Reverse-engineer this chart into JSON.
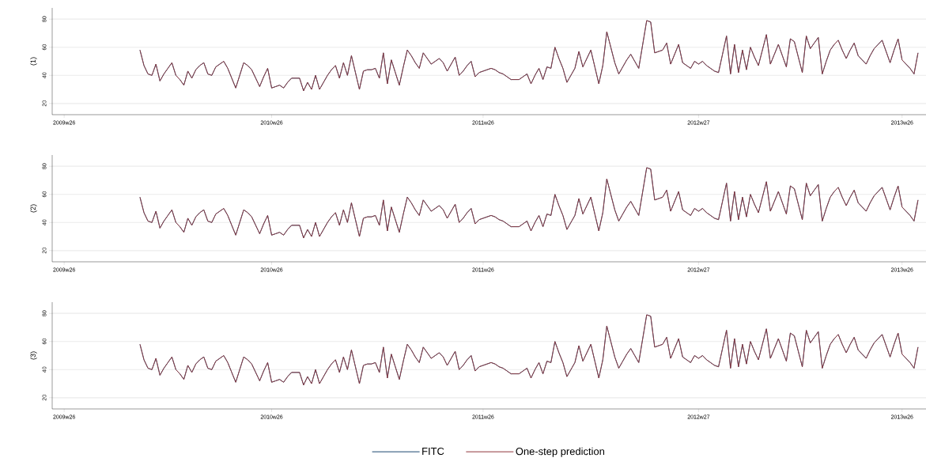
{
  "chart_data": [
    {
      "type": "line",
      "ylabel": "(1)",
      "categories": [
        "2009w26",
        null,
        null,
        null,
        null,
        null,
        null,
        null,
        null,
        null,
        null,
        null,
        null,
        null,
        null,
        null,
        null,
        null,
        null,
        null,
        null,
        null,
        null,
        null,
        null,
        null,
        null,
        null,
        null,
        null,
        null,
        null,
        null,
        null,
        null,
        null,
        null,
        null,
        null,
        null,
        null,
        null,
        null,
        null,
        null,
        null,
        null,
        null,
        null,
        null,
        null,
        null,
        "2010w26",
        null,
        null,
        null,
        null,
        null,
        null,
        null,
        null,
        null,
        null,
        null,
        null,
        null,
        null,
        null,
        null,
        null,
        null,
        null,
        null,
        null,
        null,
        null,
        null,
        null,
        null,
        null,
        null,
        null,
        null,
        null,
        null,
        null,
        null,
        null,
        null,
        null,
        null,
        null,
        null,
        null,
        null,
        null,
        null,
        null,
        null,
        null,
        null,
        null,
        null,
        null,
        null,
        "2011w26",
        null,
        null,
        null,
        null,
        null,
        null,
        null,
        null,
        null,
        null,
        null,
        null,
        null,
        null,
        null,
        null,
        null,
        null,
        null,
        null,
        null,
        null,
        null,
        null,
        null,
        null,
        null,
        null,
        null,
        null,
        null,
        null,
        null,
        null,
        null,
        null,
        null,
        null,
        null,
        null,
        null,
        null,
        null,
        null,
        null,
        null,
        null,
        null,
        null,
        null,
        null,
        null,
        null,
        "2012w27",
        null,
        null,
        null,
        null,
        null,
        null,
        null,
        null,
        null,
        null,
        null,
        null,
        null,
        null,
        null,
        null,
        null,
        null,
        null,
        null,
        null,
        null,
        null,
        null,
        null,
        null,
        null,
        null,
        null,
        null,
        null,
        null,
        null,
        null,
        null,
        null,
        null,
        null,
        null,
        null,
        null,
        null,
        null,
        null,
        null,
        null,
        null,
        null,
        null,
        null,
        "2013w26",
        null,
        null,
        null,
        null
      ],
      "ylim": [
        12,
        88
      ],
      "yticks": [
        20,
        40,
        60,
        80
      ],
      "grid": "y",
      "series": [
        {
          "color": "#1a476f",
          "values": [
            null,
            null,
            null,
            null,
            null,
            null,
            null,
            null,
            null,
            null,
            null,
            null,
            null,
            null,
            null,
            null,
            null,
            null,
            null,
            58,
            47,
            41,
            40,
            48,
            36,
            41,
            45,
            49,
            40,
            37,
            33,
            43,
            38,
            44,
            47,
            49,
            41,
            40,
            46,
            48,
            50,
            45,
            38,
            31,
            40,
            49,
            47,
            44,
            38,
            32,
            39,
            45,
            31,
            32,
            33,
            31,
            35,
            38,
            38,
            38,
            29,
            35,
            30,
            40,
            30,
            35,
            40,
            44,
            47,
            38,
            49,
            40,
            54,
            42,
            30,
            43,
            44,
            44,
            45,
            38,
            56,
            34,
            51,
            42,
            33,
            46,
            58,
            54,
            49,
            45,
            56,
            52,
            48,
            50,
            52,
            49,
            43,
            48,
            53,
            40,
            43,
            47,
            50,
            39,
            42,
            43,
            44,
            45,
            44,
            42,
            41,
            39,
            37,
            37,
            37,
            39,
            41,
            34,
            40,
            45,
            37,
            46,
            45,
            60,
            52,
            45,
            35,
            40,
            45,
            57,
            46,
            52,
            58,
            46,
            34,
            47,
            71,
            60,
            49,
            41,
            46,
            51,
            55,
            50,
            45,
            62,
            79,
            78,
            56,
            57,
            58,
            63,
            48,
            55,
            62,
            49,
            47,
            45,
            50,
            48,
            50,
            47,
            45,
            43,
            42,
            55,
            68,
            41,
            62,
            42,
            58,
            44,
            60,
            53,
            47,
            58,
            69,
            48,
            55,
            62,
            54,
            46,
            66,
            64,
            53,
            42,
            68,
            59,
            63,
            67,
            41,
            50,
            58,
            62,
            65,
            58,
            52,
            58,
            63,
            54,
            51,
            48,
            54,
            59,
            62,
            65,
            57,
            49,
            58,
            66,
            51,
            48,
            45,
            41,
            56
          ]
        },
        {
          "color": "#90353b",
          "values": [
            null,
            null,
            null,
            null,
            null,
            null,
            null,
            null,
            null,
            null,
            null,
            null,
            null,
            null,
            null,
            null,
            null,
            null,
            null,
            58,
            47,
            41,
            40,
            48,
            36,
            41,
            45,
            49,
            40,
            37,
            33,
            43,
            38,
            44,
            47,
            49,
            41,
            40,
            46,
            48,
            50,
            45,
            38,
            31,
            40,
            49,
            47,
            44,
            38,
            32,
            39,
            45,
            31,
            32,
            33,
            31,
            35,
            38,
            38,
            38,
            29,
            35,
            30,
            40,
            30,
            35,
            40,
            44,
            47,
            38,
            49,
            40,
            54,
            42,
            30,
            43,
            44,
            44,
            45,
            38,
            56,
            34,
            51,
            42,
            33,
            46,
            58,
            54,
            49,
            45,
            56,
            52,
            48,
            50,
            52,
            49,
            43,
            48,
            53,
            40,
            43,
            47,
            50,
            39,
            42,
            43,
            44,
            45,
            44,
            42,
            41,
            39,
            37,
            37,
            37,
            39,
            41,
            34,
            40,
            45,
            37,
            46,
            45,
            60,
            52,
            45,
            35,
            40,
            45,
            57,
            46,
            52,
            58,
            46,
            34,
            47,
            71,
            60,
            49,
            41,
            46,
            51,
            55,
            50,
            45,
            62,
            79,
            78,
            56,
            57,
            58,
            63,
            48,
            55,
            62,
            49,
            47,
            45,
            50,
            48,
            50,
            47,
            45,
            43,
            42,
            55,
            68,
            41,
            62,
            42,
            58,
            44,
            60,
            53,
            47,
            58,
            69,
            48,
            55,
            62,
            54,
            46,
            66,
            64,
            53,
            42,
            68,
            59,
            63,
            67,
            41,
            50,
            58,
            62,
            65,
            58,
            52,
            58,
            63,
            54,
            51,
            48,
            54,
            59,
            62,
            65,
            57,
            49,
            58,
            66,
            51,
            48,
            45,
            41,
            56
          ]
        }
      ]
    },
    {
      "type": "line",
      "ylabel": "(2)",
      "categories": [
        "2009w26",
        null,
        null,
        null,
        null,
        null,
        null,
        null,
        null,
        null,
        null,
        null,
        null,
        null,
        null,
        null,
        null,
        null,
        null,
        null,
        null,
        null,
        null,
        null,
        null,
        null,
        null,
        null,
        null,
        null,
        null,
        null,
        null,
        null,
        null,
        null,
        null,
        null,
        null,
        null,
        null,
        null,
        null,
        null,
        null,
        null,
        null,
        null,
        null,
        null,
        null,
        null,
        "2010w26",
        null,
        null,
        null,
        null,
        null,
        null,
        null,
        null,
        null,
        null,
        null,
        null,
        null,
        null,
        null,
        null,
        null,
        null,
        null,
        null,
        null,
        null,
        null,
        null,
        null,
        null,
        null,
        null,
        null,
        null,
        null,
        null,
        null,
        null,
        null,
        null,
        null,
        null,
        null,
        null,
        null,
        null,
        null,
        null,
        null,
        null,
        null,
        null,
        null,
        null,
        null,
        null,
        "2011w26",
        null,
        null,
        null,
        null,
        null,
        null,
        null,
        null,
        null,
        null,
        null,
        null,
        null,
        null,
        null,
        null,
        null,
        null,
        null,
        null,
        null,
        null,
        null,
        null,
        null,
        null,
        null,
        null,
        null,
        null,
        null,
        null,
        null,
        null,
        null,
        null,
        null,
        null,
        null,
        null,
        null,
        null,
        null,
        null,
        null,
        null,
        null,
        null,
        null,
        null,
        null,
        null,
        null,
        "2012w27",
        null,
        null,
        null,
        null,
        null,
        null,
        null,
        null,
        null,
        null,
        null,
        null,
        null,
        null,
        null,
        null,
        null,
        null,
        null,
        null,
        null,
        null,
        null,
        null,
        null,
        null,
        null,
        null,
        null,
        null,
        null,
        null,
        null,
        null,
        null,
        null,
        null,
        null,
        null,
        null,
        null,
        null,
        null,
        null,
        null,
        null,
        null,
        null,
        null,
        null,
        "2013w26",
        null,
        null,
        null,
        null
      ],
      "ylim": [
        12,
        88
      ],
      "yticks": [
        20,
        40,
        60,
        80
      ],
      "grid": "y",
      "series": [
        {
          "color": "#1a476f",
          "values": [
            null,
            null,
            null,
            null,
            null,
            null,
            null,
            null,
            null,
            null,
            null,
            null,
            null,
            null,
            null,
            null,
            null,
            null,
            null,
            58,
            47,
            41,
            40,
            48,
            36,
            41,
            45,
            49,
            40,
            37,
            33,
            43,
            38,
            44,
            47,
            49,
            41,
            40,
            46,
            48,
            50,
            45,
            38,
            31,
            40,
            49,
            47,
            44,
            38,
            32,
            39,
            45,
            31,
            32,
            33,
            31,
            35,
            38,
            38,
            38,
            29,
            35,
            30,
            40,
            30,
            35,
            40,
            44,
            47,
            38,
            49,
            40,
            54,
            42,
            30,
            43,
            44,
            44,
            45,
            38,
            56,
            34,
            51,
            42,
            33,
            46,
            58,
            54,
            49,
            45,
            56,
            52,
            48,
            50,
            52,
            49,
            43,
            48,
            53,
            40,
            43,
            47,
            50,
            39,
            42,
            43,
            44,
            45,
            44,
            42,
            41,
            39,
            37,
            37,
            37,
            39,
            41,
            34,
            40,
            45,
            37,
            46,
            45,
            60,
            52,
            45,
            35,
            40,
            45,
            57,
            46,
            52,
            58,
            46,
            34,
            47,
            71,
            60,
            49,
            41,
            46,
            51,
            55,
            50,
            45,
            62,
            79,
            78,
            56,
            57,
            58,
            63,
            48,
            55,
            62,
            49,
            47,
            45,
            50,
            48,
            50,
            47,
            45,
            43,
            42,
            55,
            68,
            41,
            62,
            42,
            58,
            44,
            60,
            53,
            47,
            58,
            69,
            48,
            55,
            62,
            54,
            46,
            66,
            64,
            53,
            42,
            68,
            59,
            63,
            67,
            41,
            50,
            58,
            62,
            65,
            58,
            52,
            58,
            63,
            54,
            51,
            48,
            54,
            59,
            62,
            65,
            57,
            49,
            58,
            66,
            51,
            48,
            45,
            41,
            56
          ]
        },
        {
          "color": "#90353b",
          "values": [
            null,
            null,
            null,
            null,
            null,
            null,
            null,
            null,
            null,
            null,
            null,
            null,
            null,
            null,
            null,
            null,
            null,
            null,
            null,
            58,
            47,
            41,
            40,
            48,
            36,
            41,
            45,
            49,
            40,
            37,
            33,
            43,
            38,
            44,
            47,
            49,
            41,
            40,
            46,
            48,
            50,
            45,
            38,
            31,
            40,
            49,
            47,
            44,
            38,
            32,
            39,
            45,
            31,
            32,
            33,
            31,
            35,
            38,
            38,
            38,
            29,
            35,
            30,
            40,
            30,
            35,
            40,
            44,
            47,
            38,
            49,
            40,
            54,
            42,
            30,
            43,
            44,
            44,
            45,
            38,
            56,
            34,
            51,
            42,
            33,
            46,
            58,
            54,
            49,
            45,
            56,
            52,
            48,
            50,
            52,
            49,
            43,
            48,
            53,
            40,
            43,
            47,
            50,
            39,
            42,
            43,
            44,
            45,
            44,
            42,
            41,
            39,
            37,
            37,
            37,
            39,
            41,
            34,
            40,
            45,
            37,
            46,
            45,
            60,
            52,
            45,
            35,
            40,
            45,
            57,
            46,
            52,
            58,
            46,
            34,
            47,
            71,
            60,
            49,
            41,
            46,
            51,
            55,
            50,
            45,
            62,
            79,
            78,
            56,
            57,
            58,
            63,
            48,
            55,
            62,
            49,
            47,
            45,
            50,
            48,
            50,
            47,
            45,
            43,
            42,
            55,
            68,
            41,
            62,
            42,
            58,
            44,
            60,
            53,
            47,
            58,
            69,
            48,
            55,
            62,
            54,
            46,
            66,
            64,
            53,
            42,
            68,
            59,
            63,
            67,
            41,
            50,
            58,
            62,
            65,
            58,
            52,
            58,
            63,
            54,
            51,
            48,
            54,
            59,
            62,
            65,
            57,
            49,
            58,
            66,
            51,
            48,
            45,
            41,
            56
          ]
        }
      ]
    },
    {
      "type": "line",
      "ylabel": "(3)",
      "categories": [
        "2009w26",
        null,
        null,
        null,
        null,
        null,
        null,
        null,
        null,
        null,
        null,
        null,
        null,
        null,
        null,
        null,
        null,
        null,
        null,
        null,
        null,
        null,
        null,
        null,
        null,
        null,
        null,
        null,
        null,
        null,
        null,
        null,
        null,
        null,
        null,
        null,
        null,
        null,
        null,
        null,
        null,
        null,
        null,
        null,
        null,
        null,
        null,
        null,
        null,
        null,
        null,
        null,
        "2010w26",
        null,
        null,
        null,
        null,
        null,
        null,
        null,
        null,
        null,
        null,
        null,
        null,
        null,
        null,
        null,
        null,
        null,
        null,
        null,
        null,
        null,
        null,
        null,
        null,
        null,
        null,
        null,
        null,
        null,
        null,
        null,
        null,
        null,
        null,
        null,
        null,
        null,
        null,
        null,
        null,
        null,
        null,
        null,
        null,
        null,
        null,
        null,
        null,
        null,
        null,
        null,
        null,
        "2011w26",
        null,
        null,
        null,
        null,
        null,
        null,
        null,
        null,
        null,
        null,
        null,
        null,
        null,
        null,
        null,
        null,
        null,
        null,
        null,
        null,
        null,
        null,
        null,
        null,
        null,
        null,
        null,
        null,
        null,
        null,
        null,
        null,
        null,
        null,
        null,
        null,
        null,
        null,
        null,
        null,
        null,
        null,
        null,
        null,
        null,
        null,
        null,
        null,
        null,
        null,
        null,
        null,
        null,
        "2012w27",
        null,
        null,
        null,
        null,
        null,
        null,
        null,
        null,
        null,
        null,
        null,
        null,
        null,
        null,
        null,
        null,
        null,
        null,
        null,
        null,
        null,
        null,
        null,
        null,
        null,
        null,
        null,
        null,
        null,
        null,
        null,
        null,
        null,
        null,
        null,
        null,
        null,
        null,
        null,
        null,
        null,
        null,
        null,
        null,
        null,
        null,
        null,
        null,
        null,
        null,
        "2013w26",
        null,
        null,
        null,
        null
      ],
      "ylim": [
        12,
        88
      ],
      "yticks": [
        20,
        40,
        60,
        80
      ],
      "grid": "y",
      "legend": "bottom",
      "series": [
        {
          "name": "FITC",
          "color": "#1a476f",
          "values": [
            null,
            null,
            null,
            null,
            null,
            null,
            null,
            null,
            null,
            null,
            null,
            null,
            null,
            null,
            null,
            null,
            null,
            null,
            null,
            58,
            47,
            41,
            40,
            48,
            36,
            41,
            45,
            49,
            40,
            37,
            33,
            43,
            38,
            44,
            47,
            49,
            41,
            40,
            46,
            48,
            50,
            45,
            38,
            31,
            40,
            49,
            47,
            44,
            38,
            32,
            39,
            45,
            31,
            32,
            33,
            31,
            35,
            38,
            38,
            38,
            29,
            35,
            30,
            40,
            30,
            35,
            40,
            44,
            47,
            38,
            49,
            40,
            54,
            42,
            30,
            43,
            44,
            44,
            45,
            38,
            56,
            34,
            51,
            42,
            33,
            46,
            58,
            54,
            49,
            45,
            56,
            52,
            48,
            50,
            52,
            49,
            43,
            48,
            53,
            40,
            43,
            47,
            50,
            39,
            42,
            43,
            44,
            45,
            44,
            42,
            41,
            39,
            37,
            37,
            37,
            39,
            41,
            34,
            40,
            45,
            37,
            46,
            45,
            60,
            52,
            45,
            35,
            40,
            45,
            57,
            46,
            52,
            58,
            46,
            34,
            47,
            71,
            60,
            49,
            41,
            46,
            51,
            55,
            50,
            45,
            62,
            79,
            78,
            56,
            57,
            58,
            63,
            48,
            55,
            62,
            49,
            47,
            45,
            50,
            48,
            50,
            47,
            45,
            43,
            42,
            55,
            68,
            41,
            62,
            42,
            58,
            44,
            60,
            53,
            47,
            58,
            69,
            48,
            55,
            62,
            54,
            46,
            66,
            64,
            53,
            42,
            68,
            59,
            63,
            67,
            41,
            50,
            58,
            62,
            65,
            58,
            52,
            58,
            63,
            54,
            51,
            48,
            54,
            59,
            62,
            65,
            57,
            49,
            58,
            66,
            51,
            48,
            45,
            41,
            56
          ]
        },
        {
          "name": "One-step prediction",
          "color": "#90353b",
          "values": [
            null,
            null,
            null,
            null,
            null,
            null,
            null,
            null,
            null,
            null,
            null,
            null,
            null,
            null,
            null,
            null,
            null,
            null,
            null,
            58,
            47,
            41,
            40,
            48,
            36,
            41,
            45,
            49,
            40,
            37,
            33,
            43,
            38,
            44,
            47,
            49,
            41,
            40,
            46,
            48,
            50,
            45,
            38,
            31,
            40,
            49,
            47,
            44,
            38,
            32,
            39,
            45,
            31,
            32,
            33,
            31,
            35,
            38,
            38,
            38,
            29,
            35,
            30,
            40,
            30,
            35,
            40,
            44,
            47,
            38,
            49,
            40,
            54,
            42,
            30,
            43,
            44,
            44,
            45,
            38,
            56,
            34,
            51,
            42,
            33,
            46,
            58,
            54,
            49,
            45,
            56,
            52,
            48,
            50,
            52,
            49,
            43,
            48,
            53,
            40,
            43,
            47,
            50,
            39,
            42,
            43,
            44,
            45,
            44,
            42,
            41,
            39,
            37,
            37,
            37,
            39,
            41,
            34,
            40,
            45,
            37,
            46,
            45,
            60,
            52,
            45,
            35,
            40,
            45,
            57,
            46,
            52,
            58,
            46,
            34,
            47,
            71,
            60,
            49,
            41,
            46,
            51,
            55,
            50,
            45,
            62,
            79,
            78,
            56,
            57,
            58,
            63,
            48,
            55,
            62,
            49,
            47,
            45,
            50,
            48,
            50,
            47,
            45,
            43,
            42,
            55,
            68,
            41,
            62,
            42,
            58,
            44,
            60,
            53,
            47,
            58,
            69,
            48,
            55,
            62,
            54,
            46,
            66,
            64,
            53,
            42,
            68,
            59,
            63,
            67,
            41,
            50,
            58,
            62,
            65,
            58,
            52,
            58,
            63,
            54,
            51,
            48,
            54,
            59,
            62,
            65,
            57,
            49,
            58,
            66,
            51,
            48,
            45,
            41,
            56
          ]
        }
      ]
    }
  ]
}
